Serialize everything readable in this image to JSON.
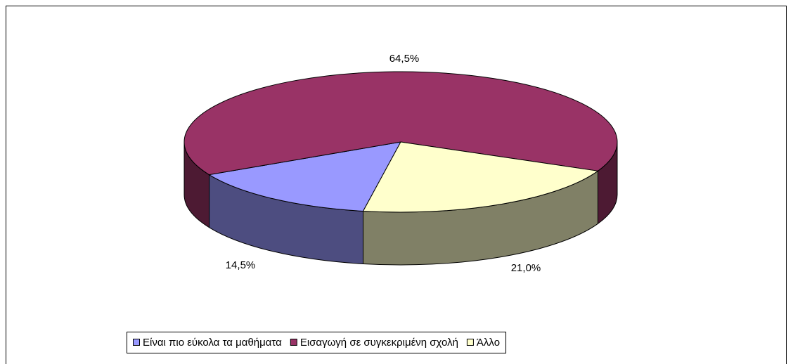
{
  "chart_data": {
    "type": "pie",
    "categories": [
      "Είναι πιο εύκολα τα μαθήματα",
      "Εισαγωγή σε συγκεκριμένη σχολή",
      "Άλλο"
    ],
    "values": [
      14.5,
      64.5,
      21.0
    ],
    "value_labels": [
      "14,5%",
      "64,5%",
      "21,0%"
    ],
    "colors": [
      "#9999ff",
      "#993366",
      "#ffffcc"
    ],
    "legend": "bottom"
  }
}
